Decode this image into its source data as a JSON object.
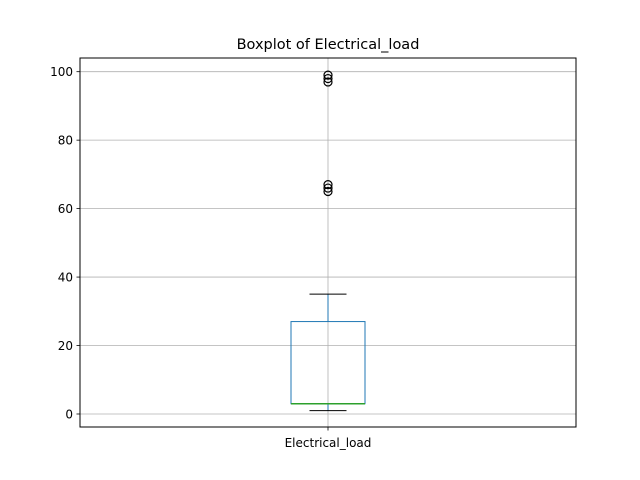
{
  "chart_data": {
    "type": "boxplot",
    "title": "Boxplot of Electrical_load",
    "xlabel": "",
    "ylabel": "",
    "categories": [
      "Electrical_load"
    ],
    "ylim": [
      -3.8,
      104
    ],
    "yticks": [
      0,
      20,
      40,
      60,
      80,
      100
    ],
    "ytick_labels": [
      "0",
      "20",
      "40",
      "60",
      "80",
      "100"
    ],
    "grid": true,
    "boxes": [
      {
        "name": "Electrical_load",
        "whisker_low": 1,
        "q1": 3,
        "median": 3,
        "q3": 27,
        "whisker_high": 35,
        "outliers": [
          97,
          98,
          99,
          65,
          66,
          67
        ]
      }
    ],
    "colors": {
      "box": "#1f77b4",
      "median": "#2ca02c",
      "whisker": "#1f77b4",
      "cap": "#000000",
      "outlier": "#000000",
      "grid": "#b0b0b0",
      "axes": "#000000"
    }
  }
}
